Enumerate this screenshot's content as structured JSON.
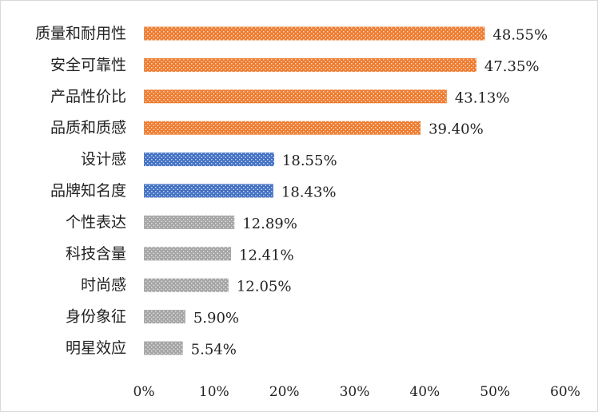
{
  "chart_data": {
    "type": "bar",
    "orientation": "horizontal",
    "categories": [
      "质量和耐用性",
      "安全可靠性",
      "产品性价比",
      "品质和质感",
      "设计感",
      "品牌知名度",
      "个性表达",
      "科技含量",
      "时尚感",
      "身份象征",
      "明星效应"
    ],
    "values": [
      48.55,
      47.35,
      43.13,
      39.4,
      18.55,
      18.43,
      12.89,
      12.41,
      12.05,
      5.9,
      5.54
    ],
    "value_labels": [
      "48.55%",
      "47.35%",
      "43.13%",
      "39.40%",
      "18.55%",
      "18.43%",
      "12.89%",
      "12.41%",
      "12.05%",
      "5.90%",
      "5.54%"
    ],
    "bar_colors": [
      "#ed7d31",
      "#ed7d31",
      "#ed7d31",
      "#ed7d31",
      "#4472c4",
      "#4472c4",
      "#a5a5a5",
      "#a5a5a5",
      "#a5a5a5",
      "#a5a5a5",
      "#a5a5a5"
    ],
    "x_ticks": [
      "0%",
      "10%",
      "20%",
      "30%",
      "40%",
      "50%",
      "60%"
    ],
    "xlim": [
      0,
      60
    ],
    "grid": false,
    "legend": "none",
    "title": "",
    "xlabel": "",
    "ylabel": "",
    "bar_pattern": "dotted"
  }
}
